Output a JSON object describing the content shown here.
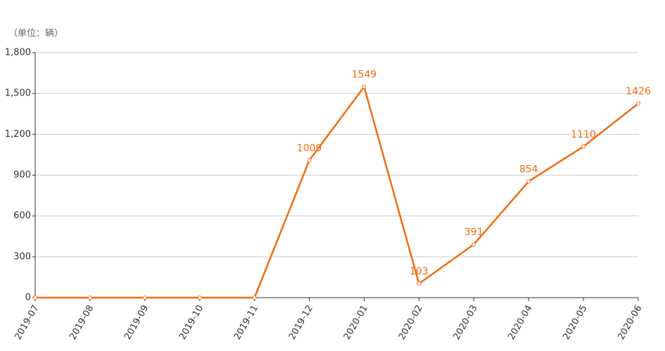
{
  "chart_data": {
    "type": "line",
    "unit_label": "（单位：辆）",
    "categories": [
      "2019-07",
      "2019-08",
      "2019-09",
      "2019-10",
      "2019-11",
      "2019-12",
      "2020-01",
      "2020-02",
      "2020-03",
      "2020-04",
      "2020-05",
      "2020-06"
    ],
    "values": [
      0,
      0,
      0,
      0,
      0,
      1009,
      1549,
      103,
      391,
      854,
      1110,
      1426
    ],
    "value_labels": [
      null,
      null,
      null,
      null,
      null,
      "1009",
      "1549",
      "103",
      "391",
      "854",
      "1110",
      "1426"
    ],
    "color": "#f26c10",
    "ylim": [
      0,
      1800
    ],
    "yticks": [
      0,
      300,
      600,
      900,
      {
        "value": 1200,
        "label": "1,200"
      },
      {
        "value": 1500,
        "label": "1,500"
      },
      {
        "value": 1800,
        "label": "1,800"
      }
    ],
    "grid": true
  }
}
